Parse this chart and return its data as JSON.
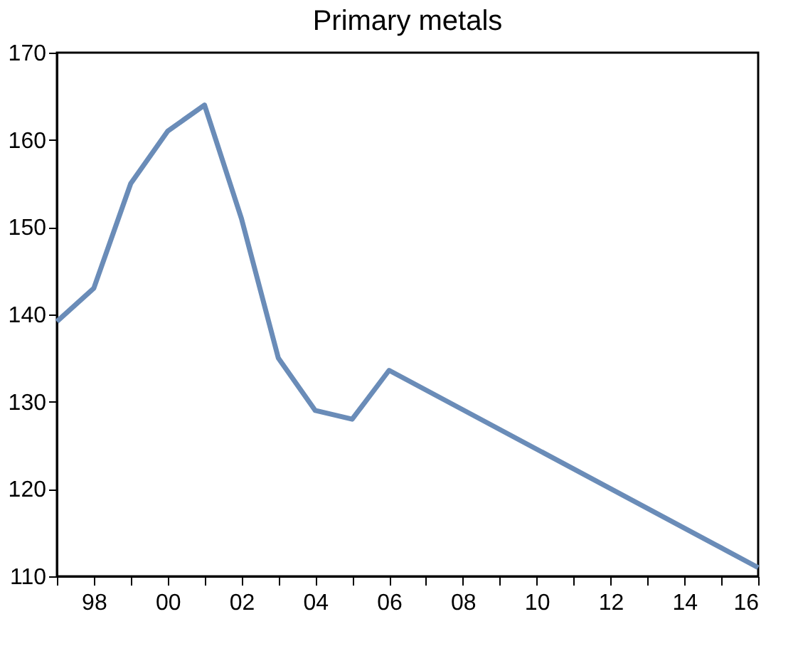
{
  "chart_data": {
    "type": "line",
    "title": "Primary metals",
    "x": [
      1997,
      1998,
      1999,
      2000,
      2001,
      2002,
      2003,
      2004,
      2005,
      2006,
      2016
    ],
    "series": [
      {
        "color": "#6a8cb8",
        "values": [
          139.2,
          143,
          155,
          161,
          164,
          151,
          135,
          129,
          128,
          133.6,
          111
        ]
      }
    ],
    "xlim": [
      1997,
      2016
    ],
    "xticks": [
      {
        "value": 1997,
        "label": null
      },
      {
        "value": 1998,
        "label": "98"
      },
      {
        "value": 1999,
        "label": null
      },
      {
        "value": 2000,
        "label": "00"
      },
      {
        "value": 2001,
        "label": null
      },
      {
        "value": 2002,
        "label": "02"
      },
      {
        "value": 2003,
        "label": null
      },
      {
        "value": 2004,
        "label": "04"
      },
      {
        "value": 2005,
        "label": null
      },
      {
        "value": 2006,
        "label": "06"
      },
      {
        "value": 2007,
        "label": null
      },
      {
        "value": 2008,
        "label": "08"
      },
      {
        "value": 2009,
        "label": null
      },
      {
        "value": 2010,
        "label": "10"
      },
      {
        "value": 2011,
        "label": null
      },
      {
        "value": 2012,
        "label": "12"
      },
      {
        "value": 2013,
        "label": null
      },
      {
        "value": 2014,
        "label": "14"
      },
      {
        "value": 2015,
        "label": null
      },
      {
        "value": 2016,
        "label": "16"
      }
    ],
    "ylim": [
      110,
      170
    ],
    "yticks": [
      110,
      120,
      130,
      140,
      150,
      160,
      170
    ],
    "grid": false,
    "legend": false,
    "marker": "none",
    "line_style": "solid"
  }
}
